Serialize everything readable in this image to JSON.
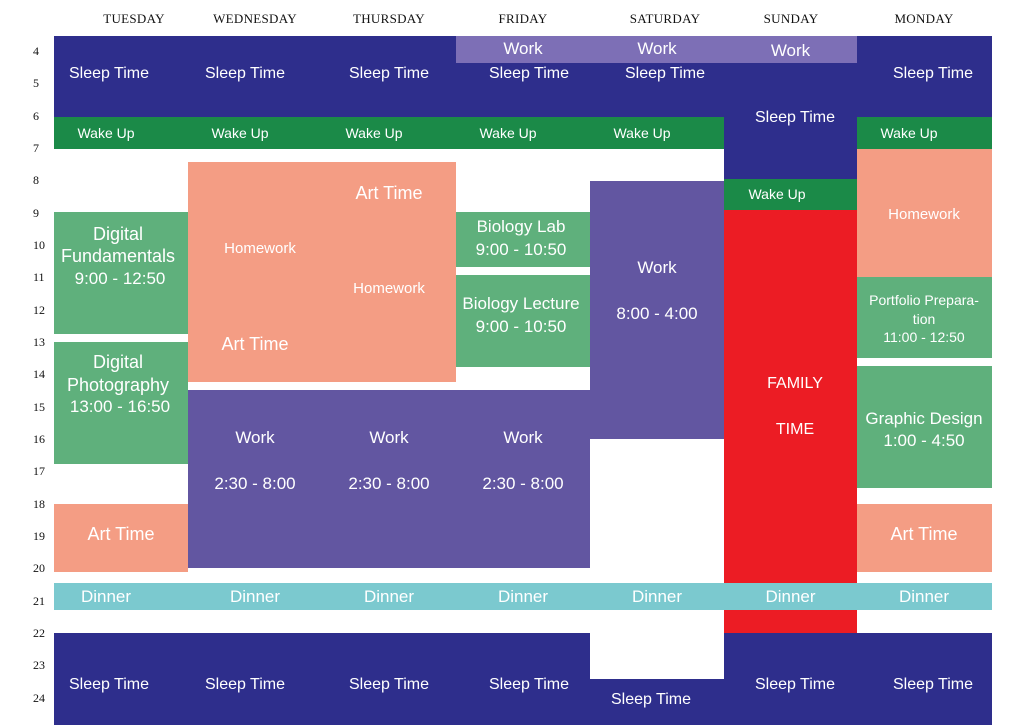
{
  "days": [
    "TUESDAY",
    "WEDNESDAY",
    "THURSDAY",
    "FRIDAY",
    "SATURDAY",
    "SUNDAY",
    "MONDAY"
  ],
  "hours": [
    "4",
    "5",
    "6",
    "7",
    "8",
    "9",
    "10",
    "11",
    "12",
    "13",
    "14",
    "15",
    "16",
    "17",
    "18",
    "19",
    "20",
    "21",
    "22",
    "23",
    "24"
  ],
  "colors": {
    "sleep": "#2e2e8c",
    "wake": "#1b8a48",
    "class": "#5fb07c",
    "homework_art": "#f49d84",
    "work": "#6256a1",
    "family": "#ec1c24",
    "dinner": "#7bc9cf"
  },
  "labels": {
    "sleep_time": "Sleep Time",
    "wake_up": "Wake Up",
    "work": "Work",
    "dinner": "Dinner",
    "art_time": "Art Time",
    "homework": "Homework",
    "digital_fundamentals_1": "Digital",
    "digital_fundamentals_2": "Fundamentals",
    "digital_fundamentals_time": "9:00 - 12:50",
    "digital_photography_1": "Digital",
    "digital_photography_2": "Photography",
    "digital_photography_time": "13:00 - 16:50",
    "work_2_30": "2:30 - 8:00",
    "biology_lab": "Biology Lab",
    "biology_lab_time": "9:00 - 10:50",
    "biology_lecture": "Biology Lecture",
    "biology_lecture_time": "9:00 - 10:50",
    "work_saturday_time": "8:00 - 4:00",
    "family_1": "FAMILY",
    "family_2": "TIME",
    "portfolio_1": "Portfolio Prepara-",
    "portfolio_2": "tion",
    "portfolio_time": "11:00 - 12:50",
    "graphic_design": "Graphic Design",
    "graphic_design_time": "1:00 - 4:50"
  }
}
